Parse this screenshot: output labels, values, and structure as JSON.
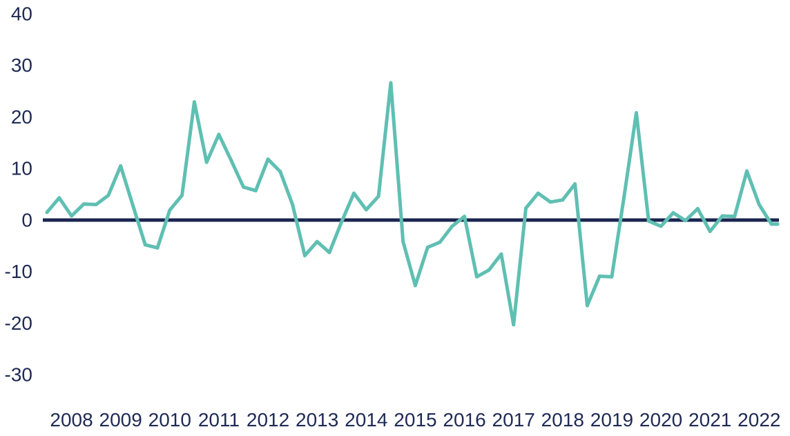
{
  "chart_data": {
    "type": "line",
    "title": "",
    "xlabel": "",
    "ylabel": "",
    "ylim": [
      -36,
      40
    ],
    "xlim": [
      2008.0,
      2022.875
    ],
    "grid": false,
    "legend": "none",
    "y_ticks": [
      "40",
      "30",
      "20",
      "10",
      "0",
      "-10",
      "-20",
      "-30"
    ],
    "y_tick_values": [
      40,
      30,
      20,
      10,
      0,
      -10,
      -20,
      -30
    ],
    "x_ticks": [
      "2008",
      "2009",
      "2010",
      "2011",
      "2012",
      "2013",
      "2014",
      "2015",
      "2016",
      "2017",
      "2018",
      "2019",
      "2020",
      "2021",
      "2022"
    ],
    "x_tick_values": [
      2008,
      2009,
      2010,
      2011,
      2012,
      2013,
      2014,
      2015,
      2016,
      2017,
      2018,
      2019,
      2020,
      2021,
      2022
    ],
    "colors": {
      "series": "#5fbfb2",
      "zero_line": "#1b2550",
      "text": "#1e2a55"
    },
    "series": [
      {
        "x": [
          2008.0,
          2008.25,
          2008.5,
          2008.75,
          2009.0,
          2009.25,
          2009.5,
          2009.75,
          2010.0,
          2010.25,
          2010.5,
          2010.75,
          2011.0,
          2011.25,
          2011.5,
          2011.75,
          2012.0,
          2012.25,
          2012.5,
          2012.75,
          2013.0,
          2013.25,
          2013.5,
          2013.75,
          2014.0,
          2014.25,
          2014.5,
          2014.75,
          2015.0,
          2015.25,
          2015.5,
          2015.75,
          2016.0,
          2016.25,
          2016.5,
          2016.75,
          2017.0,
          2017.25,
          2017.5,
          2017.75,
          2018.0,
          2018.25,
          2018.5,
          2018.75,
          2019.0,
          2019.25,
          2019.5,
          2019.75,
          2020.0,
          2020.25,
          2020.5,
          2020.75,
          2021.0,
          2021.25,
          2021.5,
          2021.75,
          2022.0,
          2022.25,
          2022.5,
          2022.75,
          2022.875
        ],
        "values": [
          1.5,
          4.3,
          0.8,
          3.1,
          3.0,
          4.8,
          10.5,
          2.8,
          -4.8,
          -5.4,
          1.9,
          4.8,
          22.9,
          11.2,
          16.6,
          11.6,
          6.4,
          5.7,
          11.8,
          9.4,
          3.0,
          -6.9,
          -4.2,
          -6.3,
          -0.3,
          5.2,
          2.0,
          4.6,
          26.6,
          -4.2,
          -12.7,
          -5.3,
          -4.3,
          -1.2,
          0.7,
          -11.0,
          -9.7,
          -6.6,
          -20.3,
          2.3,
          5.2,
          3.5,
          3.9,
          7.0,
          -16.6,
          -10.9,
          -11.0,
          4.5,
          20.8,
          -0.2,
          -1.2,
          1.4,
          -0.1,
          2.2,
          -2.2,
          0.8,
          0.7,
          9.5,
          3.0,
          -0.8,
          -0.8
        ]
      }
    ]
  }
}
